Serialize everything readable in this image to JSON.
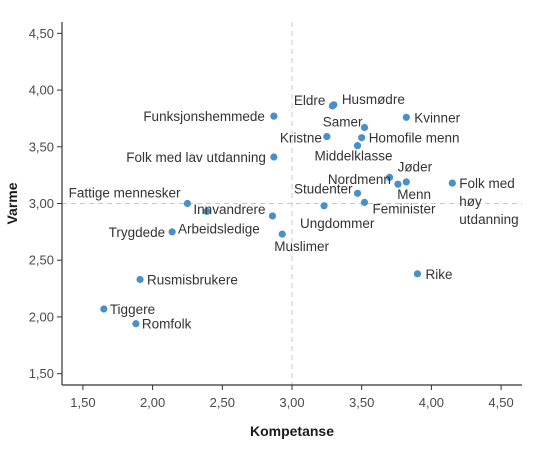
{
  "chart_data": {
    "type": "scatter",
    "xlabel": "Kompetanse",
    "ylabel": "Varme",
    "xlim": [
      1.35,
      4.65
    ],
    "ylim": [
      1.4,
      4.6
    ],
    "xticks": [
      "1,50",
      "2,00",
      "2,50",
      "3,00",
      "3,50",
      "4,00",
      "4,50"
    ],
    "yticks": [
      "1,50",
      "2,00",
      "2,50",
      "3,00",
      "3,50",
      "4,00",
      "4,50"
    ],
    "xtick_values": [
      1.5,
      2.0,
      2.5,
      3.0,
      3.5,
      4.0,
      4.5
    ],
    "ytick_values": [
      1.5,
      2.0,
      2.5,
      3.0,
      3.5,
      4.0,
      4.5
    ],
    "reference_lines": {
      "x": 3.0,
      "y": 3.0
    },
    "grid": false,
    "colors": {
      "point": "#4a90c8",
      "axis": "#333333",
      "reference": "#c8c8c8"
    },
    "points": [
      {
        "label": "Eldre",
        "x": 3.29,
        "y": 3.86
      },
      {
        "label": "Husmødre",
        "x": 3.3,
        "y": 3.87
      },
      {
        "label": "Kvinner",
        "x": 3.82,
        "y": 3.76
      },
      {
        "label": "Funksjonshemmede",
        "x": 2.87,
        "y": 3.77
      },
      {
        "label": "Samer",
        "x": 3.52,
        "y": 3.67
      },
      {
        "label": "Kristne",
        "x": 3.25,
        "y": 3.59
      },
      {
        "label": "Homofile menn",
        "x": 3.5,
        "y": 3.58
      },
      {
        "label": "Middelklasse",
        "x": 3.47,
        "y": 3.51
      },
      {
        "label": "Folk med lav utdanning",
        "x": 2.87,
        "y": 3.41
      },
      {
        "label": "Jøder",
        "x": 3.7,
        "y": 3.23
      },
      {
        "label": "Nordmenn",
        "x": 3.76,
        "y": 3.17
      },
      {
        "label": "Menn",
        "x": 3.82,
        "y": 3.19
      },
      {
        "label": "Folk med høy utdanning",
        "x": 4.15,
        "y": 3.18
      },
      {
        "label": "Studenter",
        "x": 3.47,
        "y": 3.09
      },
      {
        "label": "Fattige mennesker",
        "x": 2.25,
        "y": 3.0
      },
      {
        "label": "Feminister",
        "x": 3.52,
        "y": 3.01
      },
      {
        "label": "Arbeidsledige",
        "x": 2.39,
        "y": 2.93
      },
      {
        "label": "Innvandrere",
        "x": 2.86,
        "y": 2.89
      },
      {
        "label": "Ungdommer",
        "x": 3.23,
        "y": 2.98
      },
      {
        "label": "Trygdede",
        "x": 2.14,
        "y": 2.75
      },
      {
        "label": "Muslimer",
        "x": 2.93,
        "y": 2.73
      },
      {
        "label": "Rike",
        "x": 3.9,
        "y": 2.38
      },
      {
        "label": "Rusmisbrukere",
        "x": 1.91,
        "y": 2.33
      },
      {
        "label": "Tiggere",
        "x": 1.65,
        "y": 2.07
      },
      {
        "label": "Romfolk",
        "x": 1.88,
        "y": 1.94
      }
    ]
  }
}
